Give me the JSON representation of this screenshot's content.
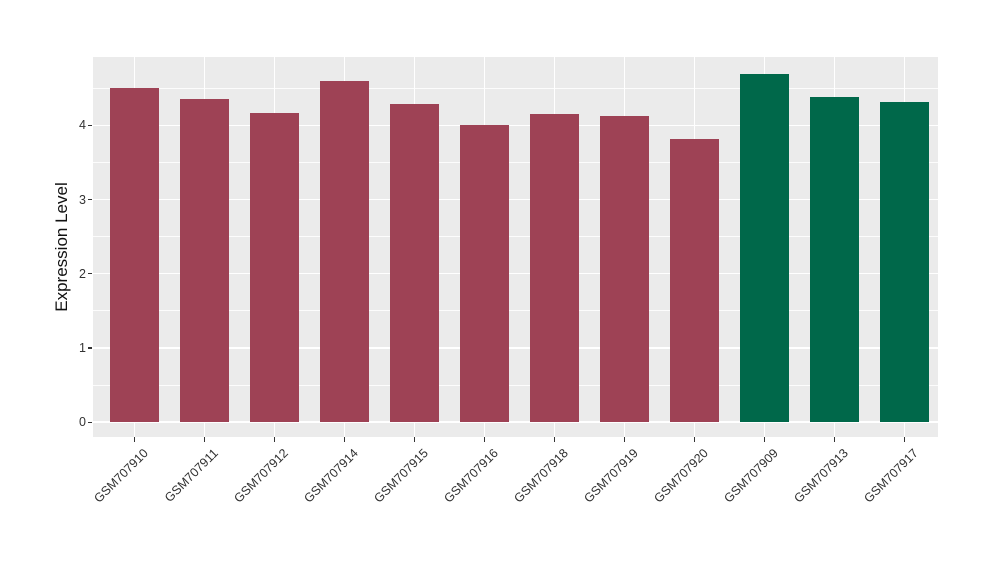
{
  "figure": {
    "y_axis_title": "Expression Level"
  },
  "chart_data": {
    "type": "bar",
    "title": "",
    "xlabel": "",
    "ylabel": "Expression Level",
    "categories": [
      "GSM707910",
      "GSM707911",
      "GSM707912",
      "GSM707914",
      "GSM707915",
      "GSM707916",
      "GSM707918",
      "GSM707919",
      "GSM707920",
      "GSM707909",
      "GSM707913",
      "GSM707917"
    ],
    "values": [
      4.5,
      4.35,
      4.17,
      4.6,
      4.29,
      4.0,
      4.15,
      4.13,
      3.82,
      4.69,
      4.38,
      4.31
    ],
    "bar_colors": [
      "#9E4255",
      "#9E4255",
      "#9E4255",
      "#9E4255",
      "#9E4255",
      "#9E4255",
      "#9E4255",
      "#9E4255",
      "#9E4255",
      "#00684A",
      "#00684A",
      "#00684A"
    ],
    "group_colors": {
      "group1": "#9E4255",
      "group2": "#00684A"
    },
    "yticks": [
      0,
      1,
      2,
      3,
      4
    ],
    "minor_ticks": [
      0.5,
      1.5,
      2.5,
      3.5,
      4.5
    ],
    "ylim": [
      -0.2,
      4.92
    ],
    "grid": true,
    "legend_position": "none",
    "panel_background": "#EBEBEB",
    "grid_color": "#FFFFFF",
    "axis_text_color": "#333333"
  }
}
